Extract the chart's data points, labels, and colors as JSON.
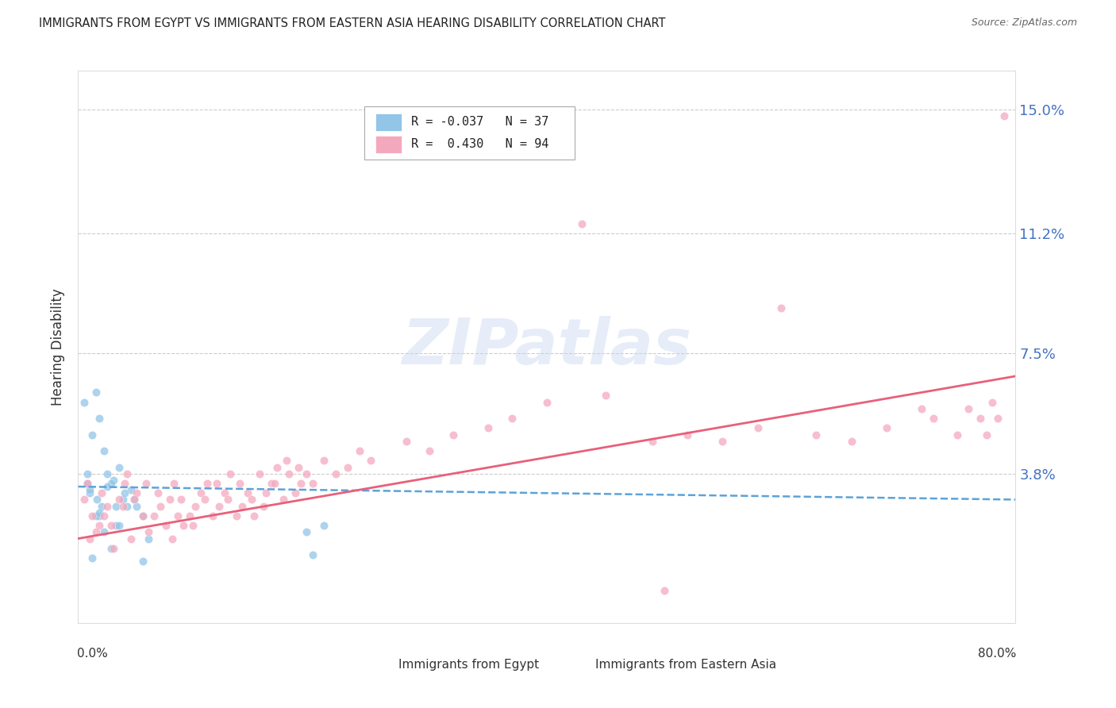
{
  "title": "IMMIGRANTS FROM EGYPT VS IMMIGRANTS FROM EASTERN ASIA HEARING DISABILITY CORRELATION CHART",
  "source": "Source: ZipAtlas.com",
  "ylabel": "Hearing Disability",
  "yticks": [
    0.0,
    0.038,
    0.075,
    0.112,
    0.15
  ],
  "ytick_labels": [
    "",
    "3.8%",
    "7.5%",
    "11.2%",
    "15.0%"
  ],
  "xlim": [
    0.0,
    0.8
  ],
  "ylim": [
    -0.008,
    0.162
  ],
  "legend_line1": "R = -0.037   N = 37",
  "legend_line2": "R =  0.430   N = 94",
  "label_egypt": "Immigrants from Egypt",
  "label_eastern_asia": "Immigrants from Eastern Asia",
  "color_egypt": "#92c5e8",
  "color_eastern_asia": "#f4a8be",
  "color_egypt_line": "#5ba3d9",
  "color_eastern_asia_line": "#e8607a",
  "watermark": "ZIPatlas",
  "title_color": "#222222",
  "source_color": "#666666",
  "axis_label_color": "#4472c4",
  "grid_color": "#cccccc",
  "egypt_trend_x0": 0.0,
  "egypt_trend_y0": 0.034,
  "egypt_trend_x1": 0.8,
  "egypt_trend_y1": 0.03,
  "asia_trend_x0": 0.0,
  "asia_trend_y0": 0.018,
  "asia_trend_x1": 0.8,
  "asia_trend_y1": 0.068,
  "egypt_N": 37,
  "eastern_asia_N": 94,
  "egypt_x": [
    0.005,
    0.012,
    0.018,
    0.022,
    0.008,
    0.015,
    0.025,
    0.03,
    0.01,
    0.035,
    0.02,
    0.028,
    0.038,
    0.045,
    0.012,
    0.055,
    0.018,
    0.032,
    0.042,
    0.016,
    0.025,
    0.008,
    0.04,
    0.05,
    0.022,
    0.015,
    0.06,
    0.035,
    0.028,
    0.018,
    0.048,
    0.01,
    0.055,
    0.032,
    0.2,
    0.195,
    0.21
  ],
  "egypt_y": [
    0.06,
    0.05,
    0.055,
    0.045,
    0.035,
    0.063,
    0.038,
    0.036,
    0.032,
    0.04,
    0.028,
    0.035,
    0.03,
    0.033,
    0.012,
    0.011,
    0.025,
    0.022,
    0.028,
    0.03,
    0.034,
    0.038,
    0.032,
    0.028,
    0.02,
    0.025,
    0.018,
    0.022,
    0.015,
    0.026,
    0.03,
    0.033,
    0.025,
    0.028,
    0.013,
    0.02,
    0.022
  ],
  "asia_x": [
    0.005,
    0.012,
    0.018,
    0.025,
    0.008,
    0.015,
    0.01,
    0.02,
    0.03,
    0.022,
    0.035,
    0.028,
    0.04,
    0.045,
    0.038,
    0.05,
    0.055,
    0.042,
    0.06,
    0.048,
    0.065,
    0.058,
    0.07,
    0.075,
    0.068,
    0.08,
    0.085,
    0.078,
    0.09,
    0.082,
    0.095,
    0.088,
    0.1,
    0.105,
    0.098,
    0.11,
    0.115,
    0.108,
    0.12,
    0.125,
    0.118,
    0.13,
    0.135,
    0.128,
    0.14,
    0.145,
    0.138,
    0.15,
    0.155,
    0.148,
    0.16,
    0.165,
    0.158,
    0.17,
    0.175,
    0.168,
    0.18,
    0.185,
    0.178,
    0.19,
    0.195,
    0.188,
    0.2,
    0.21,
    0.22,
    0.23,
    0.24,
    0.25,
    0.28,
    0.3,
    0.32,
    0.35,
    0.37,
    0.4,
    0.43,
    0.45,
    0.49,
    0.5,
    0.52,
    0.55,
    0.58,
    0.6,
    0.63,
    0.66,
    0.69,
    0.72,
    0.73,
    0.75,
    0.76,
    0.77,
    0.775,
    0.78,
    0.785,
    0.79
  ],
  "asia_y": [
    0.03,
    0.025,
    0.022,
    0.028,
    0.035,
    0.02,
    0.018,
    0.032,
    0.015,
    0.025,
    0.03,
    0.022,
    0.035,
    0.018,
    0.028,
    0.032,
    0.025,
    0.038,
    0.02,
    0.03,
    0.025,
    0.035,
    0.028,
    0.022,
    0.032,
    0.018,
    0.025,
    0.03,
    0.022,
    0.035,
    0.025,
    0.03,
    0.028,
    0.032,
    0.022,
    0.035,
    0.025,
    0.03,
    0.028,
    0.032,
    0.035,
    0.038,
    0.025,
    0.03,
    0.028,
    0.032,
    0.035,
    0.025,
    0.038,
    0.03,
    0.032,
    0.035,
    0.028,
    0.04,
    0.03,
    0.035,
    0.038,
    0.032,
    0.042,
    0.035,
    0.038,
    0.04,
    0.035,
    0.042,
    0.038,
    0.04,
    0.045,
    0.042,
    0.048,
    0.045,
    0.05,
    0.052,
    0.055,
    0.06,
    0.115,
    0.062,
    0.048,
    0.002,
    0.05,
    0.048,
    0.052,
    0.089,
    0.05,
    0.048,
    0.052,
    0.058,
    0.055,
    0.05,
    0.058,
    0.055,
    0.05,
    0.06,
    0.055,
    0.148
  ]
}
